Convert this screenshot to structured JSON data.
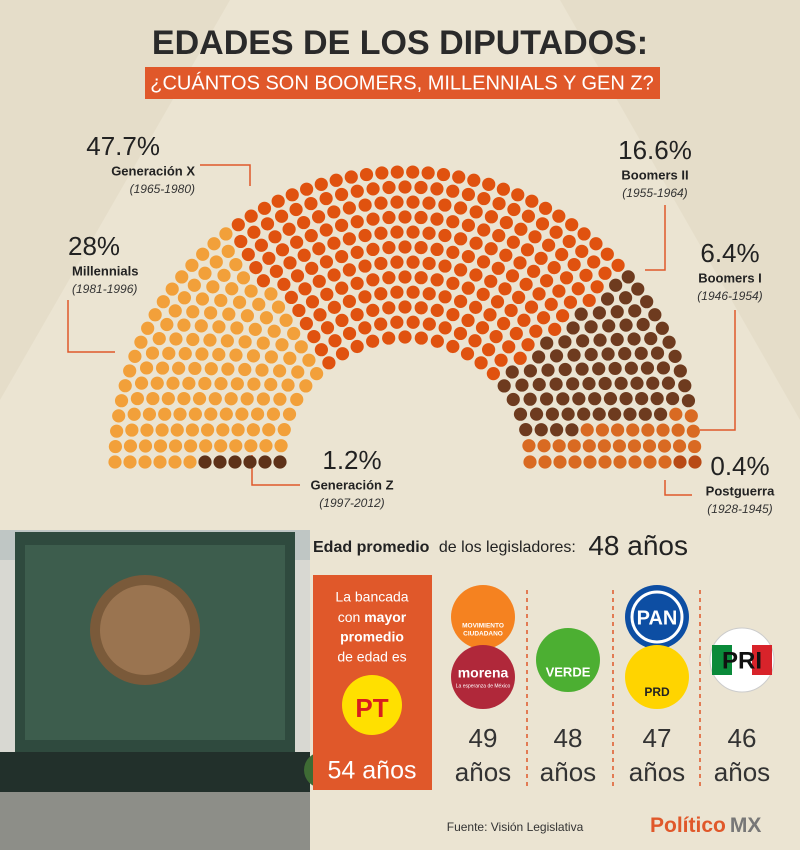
{
  "title": "EDADES DE LOS DIPUTADOS:",
  "subtitle": "¿CUÁNTOS SON BOOMERS, MILLENNIALS Y GEN Z?",
  "chart_data": {
    "type": "parliament",
    "categories": [
      "Generación Z",
      "Millennials",
      "Generación X",
      "Boomers II",
      "Boomers I",
      "Postguerra"
    ],
    "periods": [
      "(1997-2012)",
      "(1981-1996)",
      "(1965-1980)",
      "(1955-1964)",
      "(1946-1954)",
      "(1928-1945)"
    ],
    "values": [
      1.2,
      28,
      47.7,
      16.6,
      6.4,
      0.4
    ],
    "value_labels": [
      "1.2%",
      "28%",
      "47.7%",
      "16.6%",
      "6.4%",
      "0.4%"
    ],
    "colors": [
      "#5e3219",
      "#f2a03a",
      "#e0520f",
      "#6e3b1f",
      "#d96a22",
      "#b84a16"
    ]
  },
  "average": {
    "bold": "Edad promedio",
    "rest": "de los legisladores:",
    "value": "48 años"
  },
  "box": {
    "intro": "La bancada",
    "con": "con",
    "bold1": "mayor",
    "bold2": "promedio",
    "outro": "de edad es",
    "party": "PT",
    "age": "54 años"
  },
  "parties": [
    {
      "logos": [
        "MOVIMIENTO",
        "CIUDADANO",
        "morena",
        "La esperanza de México"
      ],
      "age": "49",
      "unit": "años"
    },
    {
      "logos": [
        "VERDE"
      ],
      "age": "48",
      "unit": "años"
    },
    {
      "logos": [
        "PAN",
        "PRD"
      ],
      "age": "47",
      "unit": "años"
    },
    {
      "logos": [
        "PRI"
      ],
      "age": "46",
      "unit": "años"
    }
  ],
  "source": "Fuente: Visión Legislativa",
  "brand": {
    "a": "Político",
    "b": "MX"
  }
}
